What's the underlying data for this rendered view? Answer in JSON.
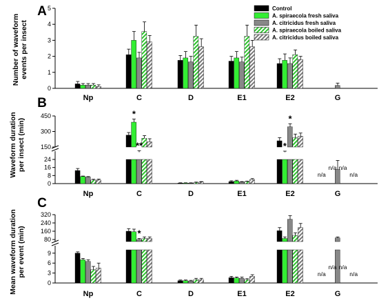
{
  "colors": {
    "control": "#000000",
    "fresh_spiraecola": "#33ee33",
    "fresh_citricidus": "#888888",
    "hatch_bg": "#ffffff",
    "hatch_green": "#2cc42c",
    "hatch_gray": "#777777"
  },
  "chart_data": [
    {
      "panel": "A",
      "type": "bar",
      "ylabel_lines": [
        "Number of waveform",
        "events per insect"
      ],
      "categories": [
        "Np",
        "C",
        "D",
        "E1",
        "E2",
        "G"
      ],
      "yticks": [
        "0",
        "1",
        "2",
        "3",
        "4",
        "5"
      ],
      "ylim": [
        0,
        5
      ],
      "legend": {
        "placement": "top-right",
        "entries": [
          {
            "label": "Control",
            "style": "solid-black"
          },
          {
            "label": "A. spiraecola fresh saliva",
            "style": "solid-green"
          },
          {
            "label": "A. citricidus fresh saliva",
            "style": "solid-gray"
          },
          {
            "label": "A. spiraecola boiled saliva",
            "style": "hatch-green"
          },
          {
            "label": "A. citricidus boiled saliva",
            "style": "hatch-gray"
          }
        ]
      },
      "series": [
        {
          "name": "Control",
          "values": [
            0.28,
            2.1,
            1.75,
            1.7,
            1.55,
            0
          ],
          "errors": [
            0.15,
            0.35,
            0.3,
            0.3,
            0.3,
            0
          ]
        },
        {
          "name": "A. spiraecola fresh saliva",
          "values": [
            0.2,
            3.0,
            1.9,
            1.9,
            1.75,
            0
          ],
          "errors": [
            0.1,
            0.55,
            0.4,
            0.4,
            0.4,
            0
          ]
        },
        {
          "name": "A. citricidus fresh saliva",
          "values": [
            0.2,
            1.9,
            1.65,
            1.65,
            1.55,
            0.18
          ],
          "errors": [
            0.1,
            0.35,
            0.35,
            0.3,
            0.35,
            0.15
          ]
        },
        {
          "name": "A. spiraecola boiled saliva",
          "values": [
            0.2,
            3.55,
            3.25,
            3.25,
            2.1,
            0
          ],
          "errors": [
            0.1,
            0.6,
            0.7,
            0.7,
            0.3,
            0
          ]
        },
        {
          "name": "A. citricidus boiled saliva",
          "values": [
            0.12,
            2.9,
            2.6,
            2.6,
            1.8,
            0
          ],
          "errors": [
            0.1,
            0.4,
            0.5,
            0.4,
            0.2,
            0
          ]
        }
      ],
      "annotations": []
    },
    {
      "panel": "B",
      "type": "bar",
      "ylabel_lines": [
        "Waveform duration",
        "per insect (min)"
      ],
      "categories": [
        "Np",
        "C",
        "D",
        "E1",
        "E2",
        "G"
      ],
      "upper_yticks": [
        "150",
        "300",
        "450"
      ],
      "upper_ylim": [
        150,
        450
      ],
      "lower_yticks": [
        "0",
        "8",
        "16",
        "24"
      ],
      "lower_ylim": [
        0,
        24
      ],
      "series": [
        {
          "name": "Control",
          "values": [
            13,
            265,
            0.5,
            2,
            210,
            null
          ],
          "errors": [
            2,
            25,
            0.3,
            0.8,
            30,
            null
          ]
        },
        {
          "name": "A. spiraecola fresh saliva",
          "values": [
            7,
            390,
            0.5,
            2.5,
            100,
            null
          ],
          "errors": [
            0.5,
            30,
            0.3,
            0.8,
            10,
            null
          ]
        },
        {
          "name": "A. citricidus fresh saliva",
          "values": [
            6.5,
            100,
            0.5,
            1.5,
            345,
            14
          ],
          "errors": [
            0.5,
            15,
            0.3,
            0.5,
            30,
            9
          ]
        },
        {
          "name": "A. spiraecola boiled saliva",
          "values": [
            3.5,
            235,
            1,
            2,
            240,
            null
          ],
          "errors": [
            0.8,
            25,
            0.5,
            0.5,
            35,
            null
          ]
        },
        {
          "name": "A. citricidus boiled saliva",
          "values": [
            3.5,
            200,
            1.5,
            4,
            255,
            null
          ],
          "errors": [
            1,
            30,
            0.5,
            1,
            30,
            null
          ]
        }
      ],
      "annotations": [
        {
          "text": "*",
          "category": "C",
          "series": 1
        },
        {
          "text": "**",
          "category": "C",
          "series": 2
        },
        {
          "text": "*",
          "category": "E2",
          "series": 1
        },
        {
          "text": "*",
          "category": "E2",
          "series": 2
        },
        {
          "text": "n/a",
          "category": "G",
          "series": 0
        },
        {
          "text": "n/a",
          "category": "G",
          "series": 1
        },
        {
          "text": "n/a",
          "category": "G",
          "series": 3
        },
        {
          "text": "n/a",
          "category": "G",
          "series": 4
        }
      ]
    },
    {
      "panel": "C",
      "type": "bar",
      "ylabel_lines": [
        "Mean waveform duration",
        "per event (min)"
      ],
      "categories": [
        "Np",
        "C",
        "D",
        "E1",
        "E2",
        "G"
      ],
      "upper_yticks": [
        "80",
        "160",
        "240",
        "320"
      ],
      "upper_ylim": [
        60,
        320
      ],
      "lower_yticks": [
        "0",
        "3",
        "6",
        "9"
      ],
      "lower_ylim": [
        0,
        10
      ],
      "series": [
        {
          "name": "Control",
          "values": [
            9,
            160,
            0.7,
            1.6,
            165,
            null
          ],
          "errors": [
            0.4,
            25,
            0.2,
            0.4,
            30,
            null
          ]
        },
        {
          "name": "A. spiraecola fresh saliva",
          "values": [
            7,
            155,
            0.7,
            1.5,
            90,
            null
          ],
          "errors": [
            0.4,
            25,
            0.2,
            0.3,
            15,
            null
          ]
        },
        {
          "name": "A. citricidus fresh saliva",
          "values": [
            6.5,
            80,
            0.6,
            1.4,
            275,
            95
          ],
          "errors": [
            0.5,
            10,
            0.2,
            0.4,
            35,
            10
          ]
        },
        {
          "name": "A. spiraecola boiled saliva",
          "values": [
            4,
            90,
            1,
            1,
            120,
            null
          ],
          "errors": [
            1,
            15,
            0.4,
            0.3,
            25,
            null
          ]
        },
        {
          "name": "A. citricidus boiled saliva",
          "values": [
            4.5,
            90,
            1,
            2,
            195,
            null
          ],
          "errors": [
            1.5,
            15,
            0.4,
            0.5,
            40,
            null
          ]
        }
      ],
      "annotations": [
        {
          "text": "*",
          "category": "C",
          "series": 2
        },
        {
          "text": "n/a",
          "category": "G",
          "series": 0
        },
        {
          "text": "n/a",
          "category": "G",
          "series": 1
        },
        {
          "text": "n/a",
          "category": "G",
          "series": 3
        },
        {
          "text": "n/a",
          "category": "G",
          "series": 4
        }
      ]
    }
  ]
}
